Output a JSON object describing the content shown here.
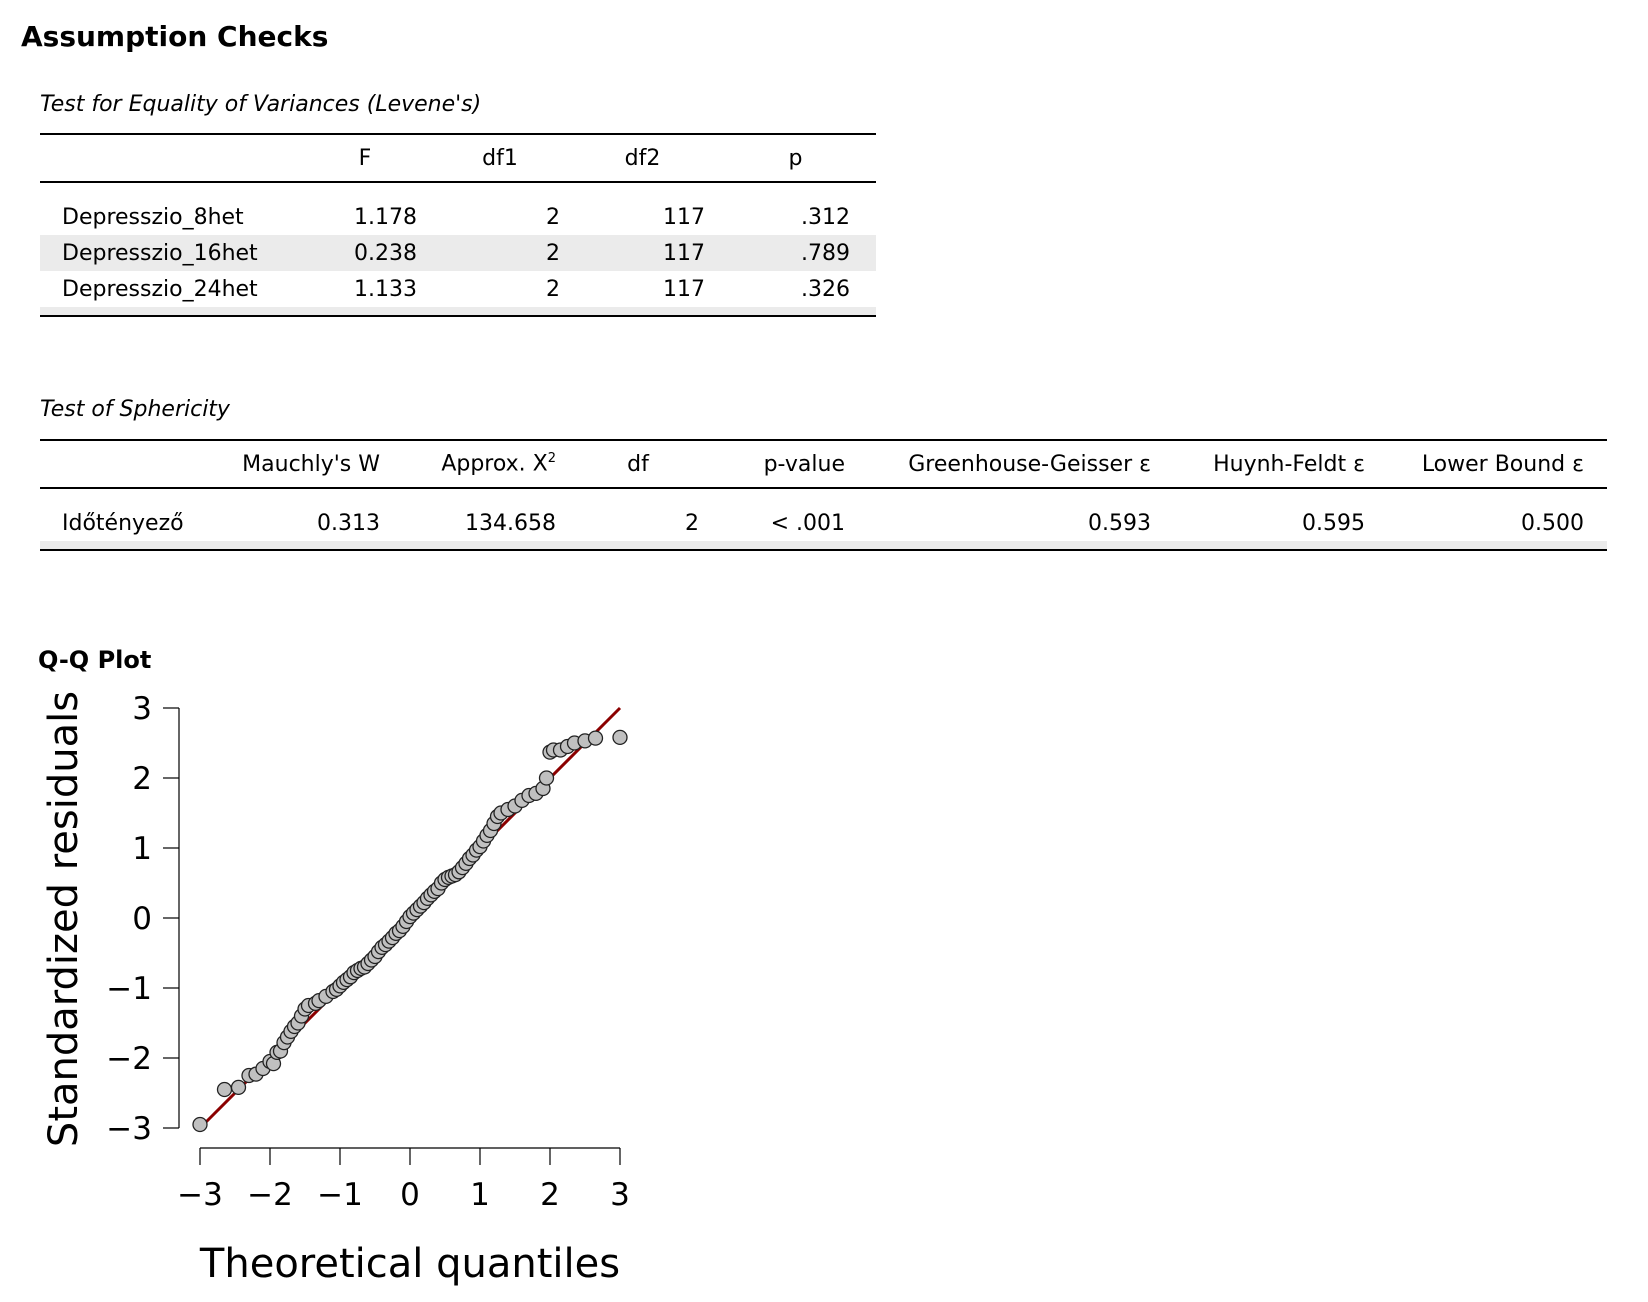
{
  "heading": "Assumption Checks",
  "levene": {
    "title": "Test for Equality of Variances (Levene's)",
    "columns": [
      "",
      "F",
      "df1",
      "df2",
      "p"
    ],
    "rows": [
      {
        "name": "Depresszio_8het",
        "F": "1.178",
        "df1": "2",
        "df2": "117",
        "p": ".312"
      },
      {
        "name": "Depresszio_16het",
        "F": "0.238",
        "df1": "2",
        "df2": "117",
        "p": ".789"
      },
      {
        "name": "Depresszio_24het",
        "F": "1.133",
        "df1": "2",
        "df2": "117",
        "p": ".326"
      }
    ]
  },
  "sphericity": {
    "title": "Test of Sphericity",
    "columns": [
      "",
      "Mauchly's W",
      "Approx. X",
      "df",
      "p-value",
      "Greenhouse-Geisser ε",
      "Huynh-Feldt ε",
      "Lower Bound ε"
    ],
    "chi_superscript": "2",
    "row": {
      "name": "Időtényező",
      "W": "0.313",
      "chi2": "134.658",
      "df": "2",
      "p": "< .001",
      "gg": "0.593",
      "hf": "0.595",
      "lb": "0.500"
    }
  },
  "qq": {
    "title": "Q-Q Plot"
  },
  "chart_data": {
    "type": "scatter",
    "title": "Q-Q Plot",
    "xlabel": "Theoretical quantiles",
    "ylabel": "Standardized residuals",
    "xlim": [
      -3,
      3
    ],
    "ylim": [
      -3,
      3
    ],
    "xticks": [
      "-3",
      "-2",
      "-1",
      "0",
      "1",
      "2",
      "3"
    ],
    "yticks": [
      "-3",
      "-2",
      "-1",
      "0",
      "1",
      "2",
      "3"
    ],
    "grid": false,
    "reference_line": {
      "from": [
        -3,
        -3
      ],
      "to": [
        3,
        3
      ],
      "color": "#8b0000"
    },
    "point_color": "#c0c0c0",
    "points": [
      [
        -3,
        -2.95
      ],
      [
        -2.65,
        -2.45
      ],
      [
        -2.45,
        -2.42
      ],
      [
        -2.3,
        -2.25
      ],
      [
        -2.2,
        -2.23
      ],
      [
        -2.1,
        -2.15
      ],
      [
        -2.0,
        -2.05
      ],
      [
        -1.95,
        -2.08
      ],
      [
        -1.9,
        -1.92
      ],
      [
        -1.85,
        -1.9
      ],
      [
        -1.8,
        -1.78
      ],
      [
        -1.75,
        -1.7
      ],
      [
        -1.7,
        -1.62
      ],
      [
        -1.65,
        -1.55
      ],
      [
        -1.6,
        -1.5
      ],
      [
        -1.55,
        -1.4
      ],
      [
        -1.5,
        -1.3
      ],
      [
        -1.45,
        -1.25
      ],
      [
        -1.35,
        -1.22
      ],
      [
        -1.3,
        -1.18
      ],
      [
        -1.2,
        -1.12
      ],
      [
        -1.1,
        -1.05
      ],
      [
        -1.05,
        -1.02
      ],
      [
        -1.0,
        -0.97
      ],
      [
        -0.95,
        -0.92
      ],
      [
        -0.9,
        -0.88
      ],
      [
        -0.85,
        -0.84
      ],
      [
        -0.8,
        -0.78
      ],
      [
        -0.75,
        -0.75
      ],
      [
        -0.7,
        -0.72
      ],
      [
        -0.65,
        -0.7
      ],
      [
        -0.6,
        -0.65
      ],
      [
        -0.55,
        -0.6
      ],
      [
        -0.5,
        -0.55
      ],
      [
        -0.45,
        -0.48
      ],
      [
        -0.4,
        -0.42
      ],
      [
        -0.35,
        -0.38
      ],
      [
        -0.3,
        -0.33
      ],
      [
        -0.25,
        -0.28
      ],
      [
        -0.2,
        -0.22
      ],
      [
        -0.15,
        -0.18
      ],
      [
        -0.1,
        -0.12
      ],
      [
        -0.05,
        -0.05
      ],
      [
        0,
        0.02
      ],
      [
        0.05,
        0.07
      ],
      [
        0.1,
        0.12
      ],
      [
        0.15,
        0.17
      ],
      [
        0.2,
        0.22
      ],
      [
        0.25,
        0.28
      ],
      [
        0.3,
        0.33
      ],
      [
        0.35,
        0.38
      ],
      [
        0.4,
        0.42
      ],
      [
        0.45,
        0.5
      ],
      [
        0.5,
        0.55
      ],
      [
        0.55,
        0.58
      ],
      [
        0.6,
        0.6
      ],
      [
        0.65,
        0.62
      ],
      [
        0.7,
        0.66
      ],
      [
        0.75,
        0.72
      ],
      [
        0.8,
        0.78
      ],
      [
        0.85,
        0.85
      ],
      [
        0.9,
        0.9
      ],
      [
        0.95,
        0.97
      ],
      [
        1.0,
        1.02
      ],
      [
        1.05,
        1.1
      ],
      [
        1.1,
        1.18
      ],
      [
        1.15,
        1.25
      ],
      [
        1.2,
        1.35
      ],
      [
        1.25,
        1.45
      ],
      [
        1.3,
        1.5
      ],
      [
        1.4,
        1.55
      ],
      [
        1.5,
        1.6
      ],
      [
        1.6,
        1.68
      ],
      [
        1.7,
        1.75
      ],
      [
        1.8,
        1.78
      ],
      [
        1.9,
        1.85
      ],
      [
        1.95,
        2.0
      ],
      [
        2.0,
        2.37
      ],
      [
        2.05,
        2.4
      ],
      [
        2.15,
        2.4
      ],
      [
        2.25,
        2.45
      ],
      [
        2.35,
        2.5
      ],
      [
        2.5,
        2.53
      ],
      [
        2.65,
        2.57
      ],
      [
        3.0,
        2.58
      ]
    ]
  }
}
